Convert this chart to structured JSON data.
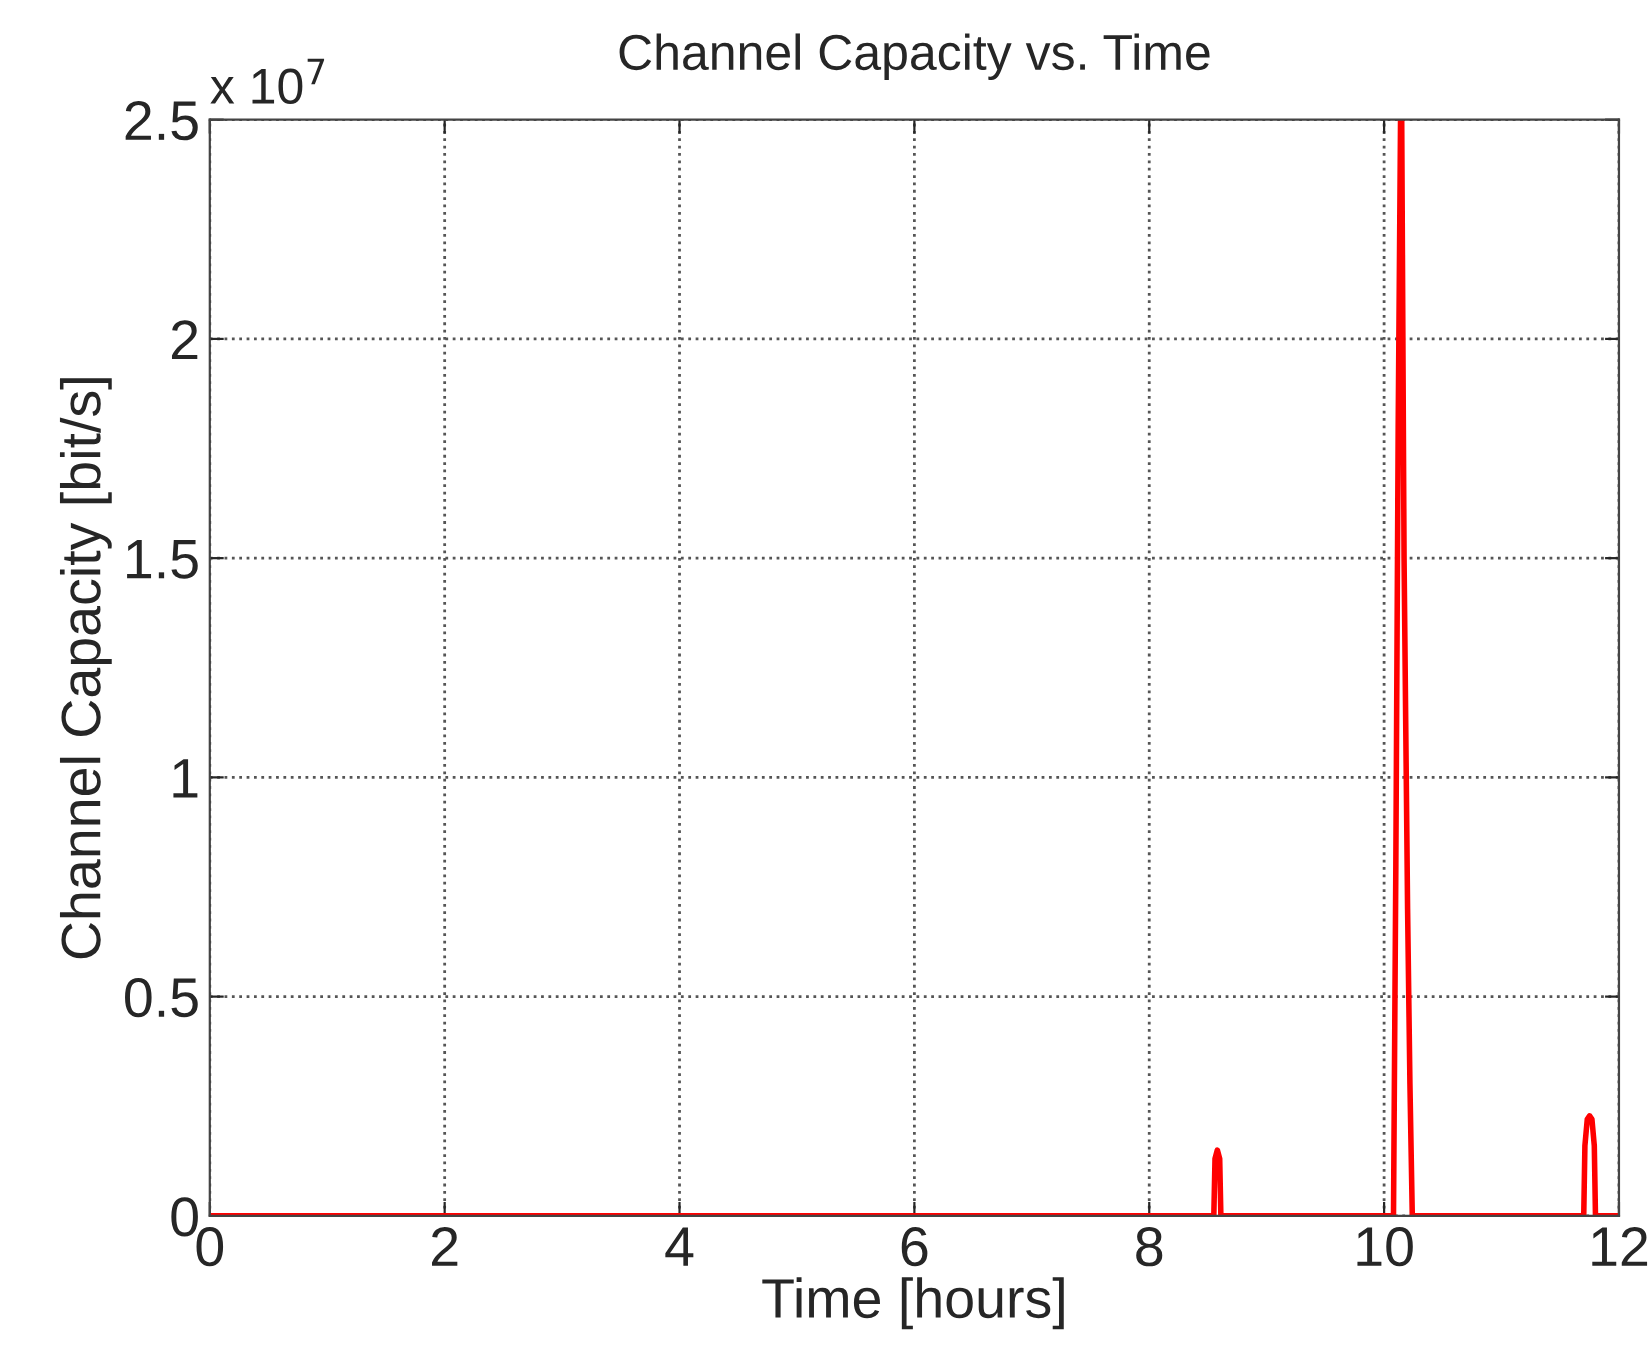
{
  "chart_data": {
    "type": "line",
    "title": "Channel Capacity vs. Time",
    "xlabel": "Time [hours]",
    "ylabel": "Channel Capacity [bit/s]",
    "annotations": [
      "x 10$^{7}$"
    ],
    "series": [
      {
        "color": "#ff0000",
        "x": [
          0,
          8.55,
          8.56,
          8.58,
          8.6,
          8.61,
          10.08,
          10.1,
          10.12,
          10.14,
          10.15,
          10.17,
          10.2,
          10.22,
          10.23,
          10.24,
          11.7,
          11.71,
          11.73,
          11.75,
          11.77,
          11.79,
          11.8,
          12
        ],
        "values": [
          0,
          0,
          0.13,
          0.15,
          0.13,
          0,
          0,
          0.8,
          1.8,
          2.5,
          2.5,
          1.5,
          0.7,
          0.3,
          0.15,
          0,
          0,
          0.16,
          0.22,
          0.228,
          0.22,
          0.16,
          0,
          0
        ]
      }
    ],
    "xlim": [
      0,
      12
    ],
    "xticks": [
      0,
      2,
      4,
      6,
      8,
      10,
      12
    ],
    "ylim": [
      0,
      2.5
    ],
    "yticks": [
      0,
      0.5,
      1,
      1.5,
      2,
      2.5
    ],
    "grid": true,
    "legend": false,
    "line_style": "solid",
    "marker": "none"
  }
}
